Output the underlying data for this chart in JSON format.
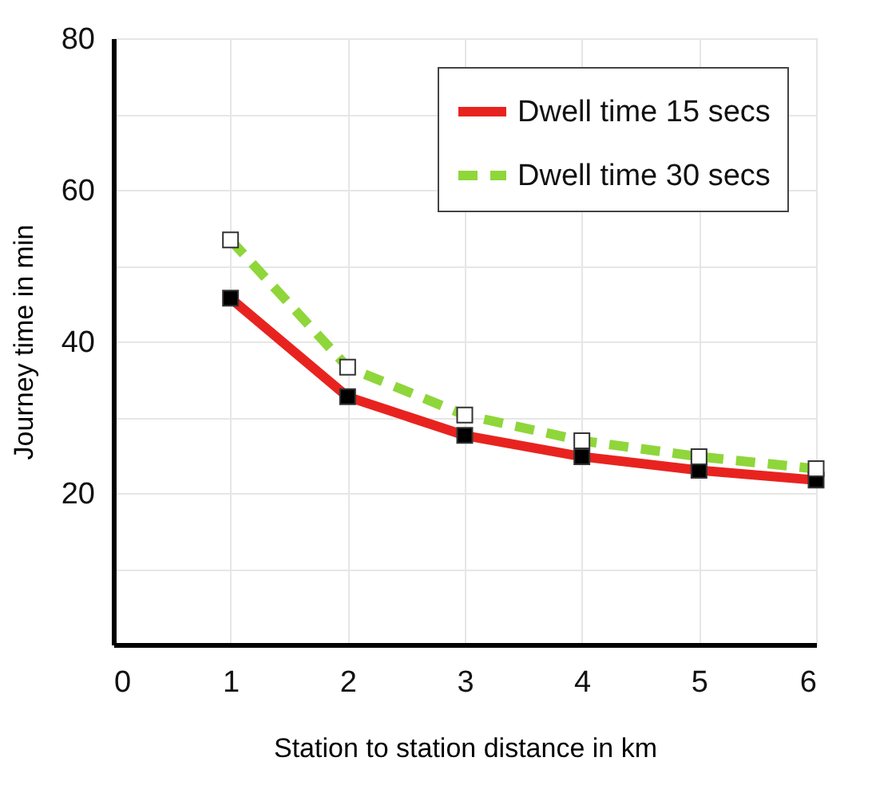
{
  "chart_data": {
    "type": "line",
    "xlabel": "Station to station distance in km",
    "ylabel": "Journey time in min",
    "x": [
      1,
      2,
      3,
      4,
      5,
      6
    ],
    "series": [
      {
        "name": "Dwell time 15 secs",
        "color": "#e8231f",
        "line_style": "solid",
        "values": [
          45.7,
          32.7,
          27.6,
          24.8,
          23.0,
          21.7
        ]
      },
      {
        "name": "Dwell time 30 secs",
        "color": "#8fd63a",
        "line_style": "dashed",
        "values": [
          53.4,
          36.6,
          30.3,
          26.9,
          24.8,
          23.2
        ]
      }
    ],
    "xlim": [
      0,
      6
    ],
    "xticks": [
      0,
      1,
      2,
      3,
      4,
      5,
      6
    ],
    "ylim": [
      0,
      80
    ],
    "yticks": [
      {
        "value": 10,
        "label": null
      },
      20,
      {
        "value": 30,
        "label": null
      },
      40,
      {
        "value": 50,
        "label": null
      },
      60,
      {
        "value": 70,
        "label": null
      },
      80
    ],
    "grid": true,
    "legend": "top right",
    "marker": "square"
  }
}
